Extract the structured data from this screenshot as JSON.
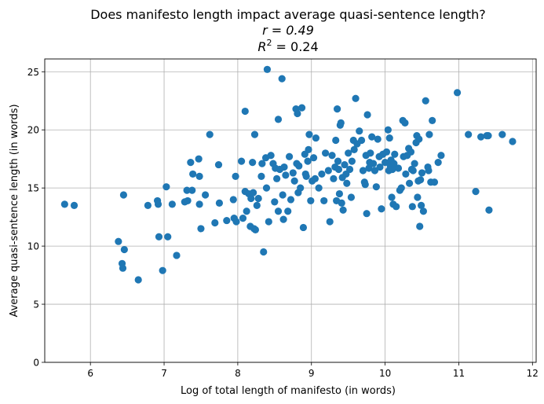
{
  "chart_data": {
    "type": "scatter",
    "title_lines": [
      "Does manifesto length impact average quasi-sentence length?",
      "r = 0.49",
      "R2 = 0.24"
    ],
    "xlabel": "Log of total length of manifesto (in words)",
    "ylabel": "Average quasi-sentence length (in words)",
    "xlim": [
      5.38,
      12.05
    ],
    "ylim": [
      0,
      26.1
    ],
    "xticks": [
      6,
      7,
      8,
      9,
      10,
      11,
      12
    ],
    "yticks": [
      0,
      5,
      10,
      15,
      20,
      25
    ],
    "grid": true,
    "point_color": "#1f77b4",
    "points": [
      [
        5.65,
        13.6
      ],
      [
        5.78,
        13.5
      ],
      [
        6.38,
        10.4
      ],
      [
        6.43,
        8.5
      ],
      [
        6.44,
        8.1
      ],
      [
        6.45,
        14.4
      ],
      [
        6.46,
        9.7
      ],
      [
        6.65,
        7.1
      ],
      [
        6.78,
        13.5
      ],
      [
        6.91,
        13.9
      ],
      [
        6.92,
        13.6
      ],
      [
        6.93,
        10.8
      ],
      [
        6.98,
        7.9
      ],
      [
        7.03,
        15.1
      ],
      [
        7.05,
        10.8
      ],
      [
        7.11,
        13.6
      ],
      [
        7.17,
        9.2
      ],
      [
        7.28,
        13.8
      ],
      [
        7.31,
        14.8
      ],
      [
        7.32,
        13.9
      ],
      [
        7.36,
        17.2
      ],
      [
        7.38,
        14.8
      ],
      [
        7.39,
        16.2
      ],
      [
        7.47,
        17.5
      ],
      [
        7.48,
        16.0
      ],
      [
        7.48,
        13.6
      ],
      [
        7.5,
        11.5
      ],
      [
        7.56,
        14.4
      ],
      [
        7.62,
        19.6
      ],
      [
        7.69,
        12.0
      ],
      [
        7.74,
        17.0
      ],
      [
        7.75,
        13.7
      ],
      [
        7.85,
        12.2
      ],
      [
        7.94,
        14.0
      ],
      [
        7.95,
        12.4
      ],
      [
        7.97,
        16.0
      ],
      [
        7.98,
        12.1
      ],
      [
        8.05,
        17.3
      ],
      [
        8.07,
        12.4
      ],
      [
        8.1,
        21.6
      ],
      [
        8.1,
        14.7
      ],
      [
        8.12,
        13.0
      ],
      [
        8.15,
        14.5
      ],
      [
        8.17,
        11.7
      ],
      [
        8.18,
        14.1
      ],
      [
        8.2,
        17.2
      ],
      [
        8.21,
        14.6
      ],
      [
        8.22,
        11.5
      ],
      [
        8.23,
        19.6
      ],
      [
        8.24,
        11.4
      ],
      [
        8.26,
        13.5
      ],
      [
        8.28,
        14.1
      ],
      [
        8.32,
        16.0
      ],
      [
        8.33,
        17.1
      ],
      [
        8.35,
        9.5
      ],
      [
        8.38,
        17.6
      ],
      [
        8.39,
        15.0
      ],
      [
        8.4,
        25.2
      ],
      [
        8.42,
        12.1
      ],
      [
        8.45,
        17.8
      ],
      [
        8.48,
        17.1
      ],
      [
        8.5,
        13.8
      ],
      [
        8.51,
        16.7
      ],
      [
        8.53,
        15.8
      ],
      [
        8.55,
        20.9
      ],
      [
        8.55,
        13.0
      ],
      [
        8.57,
        16.6
      ],
      [
        8.6,
        24.4
      ],
      [
        8.61,
        14.4
      ],
      [
        8.62,
        12.3
      ],
      [
        8.63,
        16.8
      ],
      [
        8.65,
        16.1
      ],
      [
        8.68,
        13.0
      ],
      [
        8.7,
        17.7
      ],
      [
        8.72,
        14.0
      ],
      [
        8.75,
        16.3
      ],
      [
        8.77,
        15.6
      ],
      [
        8.79,
        21.8
      ],
      [
        8.8,
        17.1
      ],
      [
        8.81,
        21.4
      ],
      [
        8.82,
        14.6
      ],
      [
        8.83,
        16.9
      ],
      [
        8.85,
        15.0
      ],
      [
        8.87,
        21.9
      ],
      [
        8.89,
        11.6
      ],
      [
        8.91,
        17.9
      ],
      [
        8.92,
        16.2
      ],
      [
        8.93,
        16.0
      ],
      [
        8.95,
        17.3
      ],
      [
        8.96,
        18.3
      ],
      [
        8.97,
        19.6
      ],
      [
        8.99,
        13.9
      ],
      [
        9.01,
        15.6
      ],
      [
        9.03,
        17.6
      ],
      [
        9.05,
        15.8
      ],
      [
        9.06,
        19.3
      ],
      [
        9.1,
        15.0
      ],
      [
        9.14,
        16.2
      ],
      [
        9.17,
        13.9
      ],
      [
        9.19,
        18.0
      ],
      [
        9.23,
        16.5
      ],
      [
        9.25,
        12.1
      ],
      [
        9.28,
        17.8
      ],
      [
        9.3,
        15.8
      ],
      [
        9.32,
        16.8
      ],
      [
        9.33,
        19.1
      ],
      [
        9.34,
        13.9
      ],
      [
        9.35,
        21.8
      ],
      [
        9.36,
        17.3
      ],
      [
        9.37,
        16.6
      ],
      [
        9.38,
        14.5
      ],
      [
        9.39,
        20.4
      ],
      [
        9.4,
        20.6
      ],
      [
        9.41,
        13.7
      ],
      [
        9.42,
        15.9
      ],
      [
        9.43,
        13.1
      ],
      [
        9.45,
        17.0
      ],
      [
        9.47,
        16.2
      ],
      [
        9.48,
        15.4
      ],
      [
        9.5,
        18.0
      ],
      [
        9.52,
        16.6
      ],
      [
        9.54,
        14.2
      ],
      [
        9.55,
        17.3
      ],
      [
        9.57,
        19.1
      ],
      [
        9.58,
        18.3
      ],
      [
        9.6,
        22.7
      ],
      [
        9.62,
        18.8
      ],
      [
        9.65,
        19.9
      ],
      [
        9.68,
        19.1
      ],
      [
        9.7,
        16.5
      ],
      [
        9.72,
        15.5
      ],
      [
        9.73,
        15.3
      ],
      [
        9.74,
        17.8
      ],
      [
        9.75,
        12.8
      ],
      [
        9.76,
        21.3
      ],
      [
        9.78,
        16.7
      ],
      [
        9.79,
        17.2
      ],
      [
        9.8,
        18.0
      ],
      [
        9.82,
        19.4
      ],
      [
        9.84,
        17.1
      ],
      [
        9.86,
        16.5
      ],
      [
        9.88,
        15.1
      ],
      [
        9.9,
        19.2
      ],
      [
        9.92,
        17.7
      ],
      [
        9.93,
        16.8
      ],
      [
        9.95,
        13.2
      ],
      [
        9.97,
        17.9
      ],
      [
        10.0,
        17.2
      ],
      [
        10.02,
        18.1
      ],
      [
        10.04,
        20.0
      ],
      [
        10.05,
        16.5
      ],
      [
        10.06,
        19.3
      ],
      [
        10.07,
        16.9
      ],
      [
        10.08,
        17.4
      ],
      [
        10.09,
        14.2
      ],
      [
        10.1,
        16.6
      ],
      [
        10.11,
        13.6
      ],
      [
        10.12,
        17.1
      ],
      [
        10.13,
        17.9
      ],
      [
        10.15,
        13.4
      ],
      [
        10.18,
        16.7
      ],
      [
        10.2,
        14.8
      ],
      [
        10.22,
        15.0
      ],
      [
        10.24,
        20.8
      ],
      [
        10.25,
        17.7
      ],
      [
        10.27,
        20.6
      ],
      [
        10.28,
        16.2
      ],
      [
        10.3,
        17.8
      ],
      [
        10.32,
        18.4
      ],
      [
        10.33,
        15.4
      ],
      [
        10.35,
        18.1
      ],
      [
        10.36,
        16.6
      ],
      [
        10.37,
        13.4
      ],
      [
        10.38,
        16.5
      ],
      [
        10.4,
        17.1
      ],
      [
        10.42,
        18.9
      ],
      [
        10.43,
        19.5
      ],
      [
        10.44,
        14.2
      ],
      [
        10.45,
        15.6
      ],
      [
        10.46,
        19.2
      ],
      [
        10.47,
        11.7
      ],
      [
        10.48,
        15.7
      ],
      [
        10.49,
        13.5
      ],
      [
        10.5,
        16.3
      ],
      [
        10.52,
        13.0
      ],
      [
        10.55,
        22.5
      ],
      [
        10.58,
        16.8
      ],
      [
        10.59,
        16.5
      ],
      [
        10.6,
        19.6
      ],
      [
        10.62,
        15.5
      ],
      [
        10.64,
        20.8
      ],
      [
        10.67,
        15.5
      ],
      [
        10.72,
        17.2
      ],
      [
        10.76,
        17.8
      ],
      [
        10.98,
        23.2
      ],
      [
        11.13,
        19.6
      ],
      [
        11.23,
        14.7
      ],
      [
        11.3,
        19.4
      ],
      [
        11.38,
        19.5
      ],
      [
        11.4,
        19.5
      ],
      [
        11.41,
        13.1
      ],
      [
        11.59,
        19.6
      ],
      [
        11.73,
        19.0
      ]
    ]
  }
}
